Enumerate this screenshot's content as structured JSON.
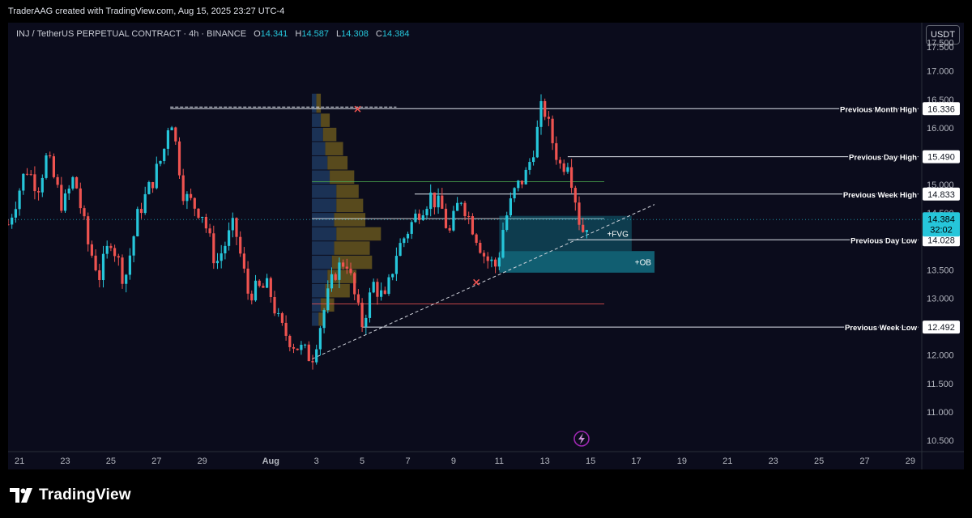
{
  "header": {
    "attribution": "TraderAAG created with TradingView.com, Aug 15, 2025 23:27 UTC-4",
    "symbol": "INJ / TetherUS PERPETUAL CONTRACT · 4h · BINANCE",
    "ohlc": [
      {
        "label": "O",
        "value": "14.341"
      },
      {
        "label": "H",
        "value": "14.587"
      },
      {
        "label": "L",
        "value": "14.308"
      },
      {
        "label": "C",
        "value": "14.384"
      }
    ],
    "currency": "USDT"
  },
  "footer": {
    "brand": "TradingView"
  },
  "colors": {
    "bull": "#26c6da",
    "bear": "#ef5350",
    "background": "#0b0c1c",
    "zone": "#17a2b8",
    "profile_dark": "#1e3a5f",
    "profile_gold": "#6b5a1e",
    "price_tag": "#26c6da"
  },
  "chart_data": {
    "type": "candlestick",
    "timeframe": "4h",
    "x_ticks": [
      "21",
      "23",
      "25",
      "27",
      "29",
      "Aug",
      "3",
      "5",
      "7",
      "9",
      "11",
      "13",
      "15",
      "17",
      "19",
      "21",
      "23",
      "25",
      "27",
      "29"
    ],
    "y_ticks": [
      "10.500",
      "11.000",
      "11.500",
      "12.000",
      "12.500",
      "13.000",
      "13.500",
      "14.000",
      "14.500",
      "15.000",
      "15.500",
      "16.000",
      "16.500",
      "17.000",
      "17.500",
      "17.500"
    ],
    "ylim": [
      10.3,
      17.85
    ],
    "x_range_days": [
      20.5,
      60.5
    ],
    "current_price": {
      "value": "14.384",
      "countdown": "32:02"
    },
    "levels": [
      {
        "name": "Previous Month High",
        "value": "16.336",
        "from_day": 27.6
      },
      {
        "name": "Previous Day High",
        "value": "15.490",
        "from_day": 45.0
      },
      {
        "name": "Previous Week High",
        "value": "14.833",
        "from_day": 38.3
      },
      {
        "name": "Previous Day Low",
        "value": "14.028",
        "from_day": 45.0
      },
      {
        "name": "Previous Week Low",
        "value": "12.492",
        "from_day": 36.0
      }
    ],
    "zones": [
      {
        "label": "+FVG",
        "top": 14.45,
        "bottom": 13.83,
        "from_day": 42.0,
        "to_day": 47.8
      },
      {
        "label": "+OB",
        "top": 13.83,
        "bottom": 13.45,
        "from_day": 42.0,
        "to_day": 48.8
      }
    ],
    "trendline": {
      "from": [
        33.8,
        11.93
      ],
      "to": [
        48.8,
        14.65
      ]
    },
    "anchors": [
      {
        "day": 33.8,
        "value": 11.93
      },
      {
        "day": 36.0,
        "value": 12.49
      },
      {
        "day": 42.0,
        "value": 13.45
      },
      {
        "day": 43.9,
        "value": 16.5
      },
      {
        "day": 45.6,
        "value": 14.1
      },
      {
        "day": 45.9,
        "value": 14.38
      }
    ],
    "pivots": [
      {
        "day": 20.5,
        "value": 14.3
      },
      {
        "day": 21.3,
        "value": 15.3
      },
      {
        "day": 21.8,
        "value": 14.95
      },
      {
        "day": 22.2,
        "value": 15.5
      },
      {
        "day": 22.9,
        "value": 14.6
      },
      {
        "day": 23.4,
        "value": 15.15
      },
      {
        "day": 24.0,
        "value": 13.95
      },
      {
        "day": 24.5,
        "value": 13.4
      },
      {
        "day": 25.0,
        "value": 14.05
      },
      {
        "day": 25.6,
        "value": 13.3
      },
      {
        "day": 26.2,
        "value": 14.5
      },
      {
        "day": 26.8,
        "value": 15.05
      },
      {
        "day": 27.3,
        "value": 15.55
      },
      {
        "day": 27.6,
        "value": 16.3
      },
      {
        "day": 28.2,
        "value": 14.8
      },
      {
        "day": 29.0,
        "value": 14.5
      },
      {
        "day": 29.6,
        "value": 13.6
      },
      {
        "day": 30.4,
        "value": 14.3
      },
      {
        "day": 31.0,
        "value": 13.1
      },
      {
        "day": 31.9,
        "value": 13.2
      },
      {
        "day": 32.4,
        "value": 12.5
      },
      {
        "day": 33.0,
        "value": 12.2
      },
      {
        "day": 33.8,
        "value": 11.95
      },
      {
        "day": 34.4,
        "value": 12.9
      },
      {
        "day": 34.8,
        "value": 13.45
      },
      {
        "day": 35.3,
        "value": 13.7
      },
      {
        "day": 35.8,
        "value": 12.8
      },
      {
        "day": 36.0,
        "value": 12.55
      },
      {
        "day": 36.5,
        "value": 13.25
      },
      {
        "day": 37.0,
        "value": 12.95
      },
      {
        "day": 37.5,
        "value": 13.8
      },
      {
        "day": 38.0,
        "value": 14.2
      },
      {
        "day": 38.5,
        "value": 14.55
      },
      {
        "day": 39.0,
        "value": 14.8
      },
      {
        "day": 39.5,
        "value": 14.55
      },
      {
        "day": 39.8,
        "value": 14.1
      },
      {
        "day": 40.3,
        "value": 14.8
      },
      {
        "day": 40.8,
        "value": 14.3
      },
      {
        "day": 41.4,
        "value": 13.7
      },
      {
        "day": 41.9,
        "value": 13.55
      },
      {
        "day": 42.2,
        "value": 14.3
      },
      {
        "day": 42.7,
        "value": 14.9
      },
      {
        "day": 43.2,
        "value": 15.2
      },
      {
        "day": 43.6,
        "value": 15.8
      },
      {
        "day": 43.9,
        "value": 16.45
      },
      {
        "day": 44.3,
        "value": 15.8
      },
      {
        "day": 44.7,
        "value": 15.3
      },
      {
        "day": 45.0,
        "value": 15.45
      },
      {
        "day": 45.3,
        "value": 14.85
      },
      {
        "day": 45.6,
        "value": 14.15
      },
      {
        "day": 45.9,
        "value": 14.38
      }
    ],
    "volume_profile": {
      "from_day": 33.8,
      "value_range": [
        12.5,
        16.6
      ],
      "bins": [
        {
          "low": 12.5,
          "high": 12.75,
          "dark": 0.15,
          "gold": 0.12
        },
        {
          "low": 12.75,
          "high": 13.0,
          "dark": 0.2,
          "gold": 0.3
        },
        {
          "low": 13.0,
          "high": 13.25,
          "dark": 0.3,
          "gold": 0.55
        },
        {
          "low": 13.25,
          "high": 13.5,
          "dark": 0.35,
          "gold": 0.65
        },
        {
          "low": 13.5,
          "high": 13.75,
          "dark": 0.45,
          "gold": 0.9
        },
        {
          "low": 13.75,
          "high": 14.0,
          "dark": 0.5,
          "gold": 0.8
        },
        {
          "low": 14.0,
          "high": 14.25,
          "dark": 0.55,
          "gold": 1.0
        },
        {
          "low": 14.25,
          "high": 14.5,
          "dark": 0.5,
          "gold": 0.7
        },
        {
          "low": 14.5,
          "high": 14.75,
          "dark": 0.55,
          "gold": 0.6
        },
        {
          "low": 14.75,
          "high": 15.0,
          "dark": 0.55,
          "gold": 0.5
        },
        {
          "low": 15.0,
          "high": 15.25,
          "dark": 0.4,
          "gold": 0.55
        },
        {
          "low": 15.25,
          "high": 15.5,
          "dark": 0.35,
          "gold": 0.45
        },
        {
          "low": 15.5,
          "high": 15.75,
          "dark": 0.3,
          "gold": 0.4
        },
        {
          "low": 15.75,
          "high": 16.0,
          "dark": 0.25,
          "gold": 0.3
        },
        {
          "low": 16.0,
          "high": 16.25,
          "dark": 0.2,
          "gold": 0.2
        },
        {
          "low": 16.25,
          "high": 16.6,
          "dark": 0.1,
          "gold": 0.1
        }
      ]
    },
    "profile_levels": [
      {
        "value": 14.4,
        "color": "#ffffff"
      },
      {
        "value": 15.05,
        "color": "#4caf50"
      },
      {
        "value": 12.9,
        "color": "#ef5350"
      }
    ],
    "markers": [
      {
        "type": "x",
        "day": 35.8,
        "value": 16.33,
        "color": "#ef5350"
      },
      {
        "type": "x",
        "day": 41.0,
        "value": 13.28,
        "color": "#ef5350"
      }
    ]
  }
}
